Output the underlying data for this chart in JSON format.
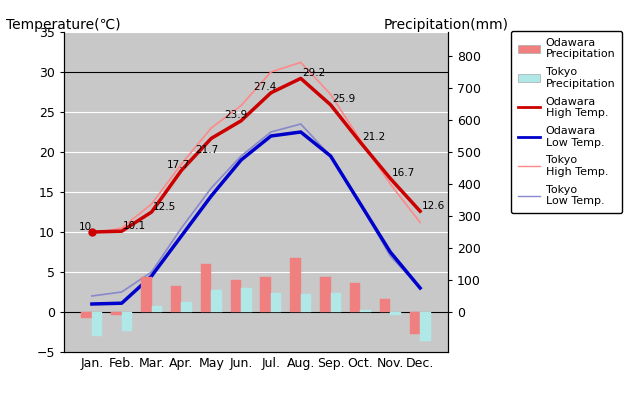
{
  "months": [
    "Jan.",
    "Feb.",
    "Mar.",
    "Apr.",
    "May",
    "Jun.",
    "Jul.",
    "Aug.",
    "Sep.",
    "Oct.",
    "Nov.",
    "Dec."
  ],
  "odawara_high": [
    10.0,
    10.1,
    12.5,
    17.7,
    21.7,
    23.9,
    27.4,
    29.2,
    25.9,
    21.2,
    16.7,
    12.6
  ],
  "odawara_low": [
    1.0,
    1.1,
    4.5,
    9.5,
    14.5,
    19.0,
    22.0,
    22.5,
    19.5,
    13.5,
    7.5,
    3.0
  ],
  "tokyo_high": [
    9.8,
    10.5,
    13.5,
    18.5,
    23.0,
    25.8,
    30.0,
    31.2,
    27.2,
    21.5,
    16.0,
    11.2
  ],
  "tokyo_low": [
    2.0,
    2.5,
    5.0,
    10.5,
    15.5,
    19.5,
    22.5,
    23.5,
    19.5,
    13.5,
    7.0,
    3.0
  ],
  "odawara_precip_mm": [
    -20,
    -10,
    110,
    80,
    150,
    100,
    110,
    170,
    110,
    90,
    40,
    -70
  ],
  "tokyo_precip_mm": [
    -75,
    -60,
    20,
    30,
    70,
    75,
    60,
    55,
    60,
    5,
    -10,
    -90
  ],
  "odawara_high_labels": [
    "10",
    "10.1",
    "12.5",
    "17.7",
    "21.7",
    "23.9",
    "27.4",
    "29.2",
    "25.9",
    "21.2",
    "16.7",
    "12.6"
  ],
  "temp_ylim": [
    -5,
    35
  ],
  "precip_ylim": [
    -125,
    875
  ],
  "background_color": "#c8c8c8",
  "odawara_high_color": "#cc0000",
  "odawara_low_color": "#0000cc",
  "tokyo_high_color": "#ff8888",
  "tokyo_low_color": "#8888cc",
  "odawara_precip_color": "#f08080",
  "tokyo_precip_color": "#b0e8e8",
  "ylabel_left": "Temperature(℃)",
  "ylabel_right": "Precipitation(mm)",
  "tick_fontsize": 9,
  "axis_label_fontsize": 10
}
